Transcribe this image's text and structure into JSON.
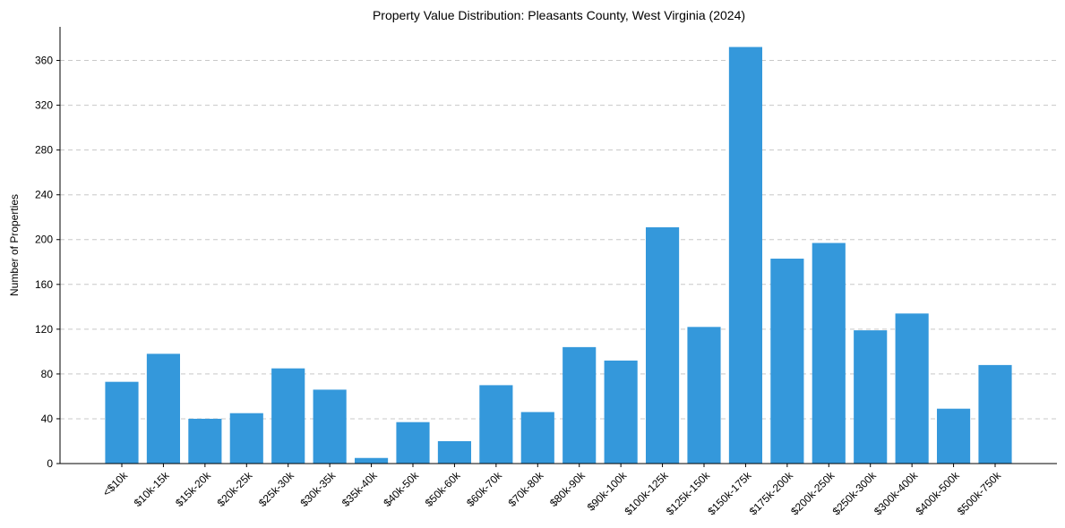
{
  "chart_data": {
    "type": "bar",
    "title": "Property Value Distribution: Pleasants County, West Virginia (2024)",
    "xlabel": "",
    "ylabel": "Number of Properties",
    "categories": [
      "<$10k",
      "$10k-15k",
      "$15k-20k",
      "$20k-25k",
      "$25k-30k",
      "$30k-35k",
      "$35k-40k",
      "$40k-50k",
      "$50k-60k",
      "$60k-70k",
      "$70k-80k",
      "$80k-90k",
      "$90k-100k",
      "$100k-125k",
      "$125k-150k",
      "$150k-175k",
      "$175k-200k",
      "$200k-250k",
      "$250k-300k",
      "$300k-400k",
      "$400k-500k",
      "$500k-750k"
    ],
    "values": [
      73,
      98,
      40,
      45,
      85,
      66,
      5,
      37,
      20,
      70,
      46,
      104,
      92,
      211,
      122,
      372,
      183,
      197,
      119,
      134,
      49,
      88
    ],
    "ylim": [
      0,
      390
    ],
    "yticks": [
      0,
      40,
      80,
      120,
      160,
      200,
      240,
      280,
      320,
      360
    ],
    "grid": "horizontal dashed",
    "bar_color": "#3498db"
  }
}
